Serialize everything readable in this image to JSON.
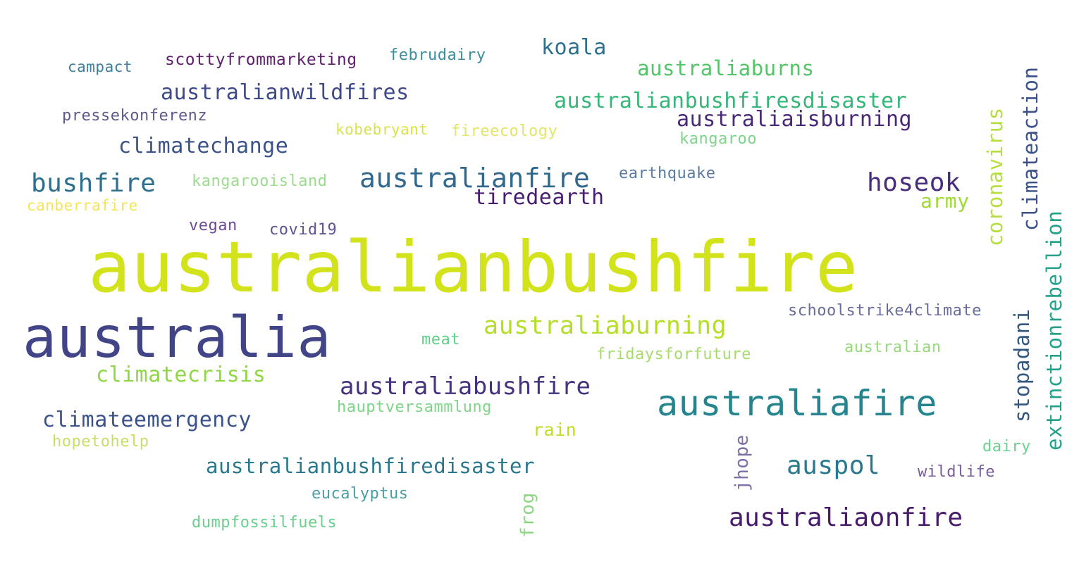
{
  "wordcloud": {
    "words": [
      {
        "text": "australianbushfire",
        "color": "#d2e21b"
      },
      {
        "text": "australia",
        "color": "#414487"
      },
      {
        "text": "australiafire",
        "color": "#25858e"
      },
      {
        "text": "australianfire",
        "color": "#31688e"
      },
      {
        "text": "bushfire",
        "color": "#2e6f8e"
      },
      {
        "text": "australiaburning",
        "color": "#b5de2b"
      },
      {
        "text": "australiabushfire",
        "color": "#46327e"
      },
      {
        "text": "climatechange",
        "color": "#3b528b"
      },
      {
        "text": "australianwildfires",
        "color": "#3e4a89"
      },
      {
        "text": "australianbushfiresdisaster",
        "color": "#35b779"
      },
      {
        "text": "australiaisburning",
        "color": "#482878"
      },
      {
        "text": "hoseok",
        "color": "#472d7b"
      },
      {
        "text": "tiredearth",
        "color": "#481f70"
      },
      {
        "text": "koala",
        "color": "#2c728e"
      },
      {
        "text": "australiaburns",
        "color": "#54c568"
      },
      {
        "text": "climateemergency",
        "color": "#3b528b"
      },
      {
        "text": "australianbushfiredisaster",
        "color": "#2a788e"
      },
      {
        "text": "auspol",
        "color": "#2a788e"
      },
      {
        "text": "australiaonfire",
        "color": "#481a6c"
      },
      {
        "text": "climatecrisis",
        "color": "#8fd744"
      },
      {
        "text": "army",
        "color": "#a0da39"
      },
      {
        "text": "rain",
        "color": "#bddf26"
      },
      {
        "text": "scottyfrommarketing",
        "color": "#5d1f6b"
      },
      {
        "text": "campact",
        "color": "#3e7f99"
      },
      {
        "text": "februdairy",
        "color": "#3e8e9e"
      },
      {
        "text": "pressekonferenz",
        "color": "#5f5a8e"
      },
      {
        "text": "kobebryant",
        "color": "#d8e34a"
      },
      {
        "text": "fireecology",
        "color": "#e3e56b"
      },
      {
        "text": "kangaroo",
        "color": "#7fd48c"
      },
      {
        "text": "earthquake",
        "color": "#5a7ba0"
      },
      {
        "text": "kangarooisland",
        "color": "#9ddc8f"
      },
      {
        "text": "canberrafire",
        "color": "#f4e557"
      },
      {
        "text": "vegan",
        "color": "#6b4c92"
      },
      {
        "text": "covid19",
        "color": "#5e5496"
      },
      {
        "text": "schoolstrike4climate",
        "color": "#6a6d9c"
      },
      {
        "text": "meat",
        "color": "#5fcf8a"
      },
      {
        "text": "fridaysforfuture",
        "color": "#a7dc6b"
      },
      {
        "text": "australian",
        "color": "#96da7a"
      },
      {
        "text": "hauptversammlung",
        "color": "#7dd587"
      },
      {
        "text": "hopetohelp",
        "color": "#c6e065"
      },
      {
        "text": "dairy",
        "color": "#6dcf90"
      },
      {
        "text": "wildlife",
        "color": "#7a5e9c"
      },
      {
        "text": "eucalyptus",
        "color": "#4a9fa5"
      },
      {
        "text": "dumpfossilfuels",
        "color": "#69cf8c"
      },
      {
        "text": "coronavirus",
        "color": "#b7de3f"
      },
      {
        "text": "climateaction",
        "color": "#3d5289"
      },
      {
        "text": "extinctionrebellion",
        "color": "#24a18a"
      },
      {
        "text": "stopadani",
        "color": "#33577f"
      },
      {
        "text": "jhope",
        "color": "#7e6fa6"
      },
      {
        "text": "frog",
        "color": "#8ed686"
      }
    ]
  }
}
